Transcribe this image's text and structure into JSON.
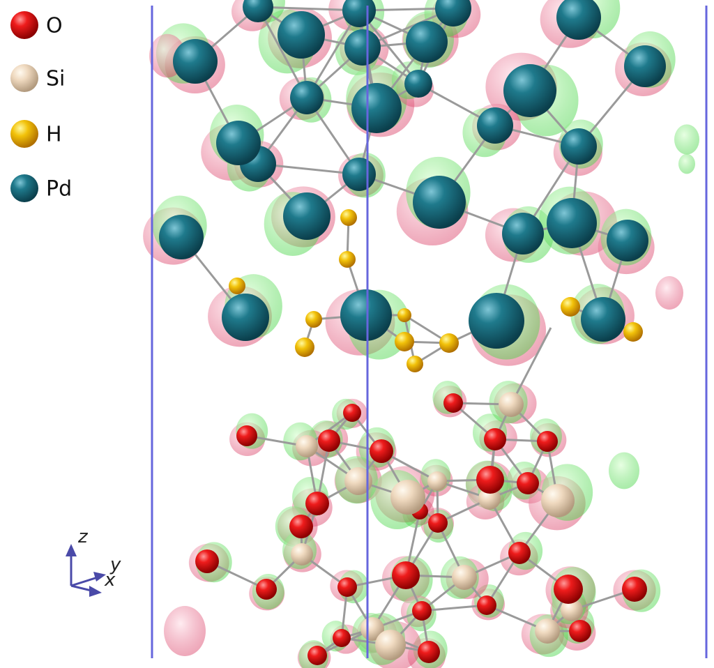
{
  "legend": [
    {
      "label": "O"
    },
    {
      "label": "Si"
    },
    {
      "label": "H"
    },
    {
      "label": "Pd"
    }
  ],
  "axes": {
    "z": "z",
    "y": "y",
    "x": "x"
  }
}
